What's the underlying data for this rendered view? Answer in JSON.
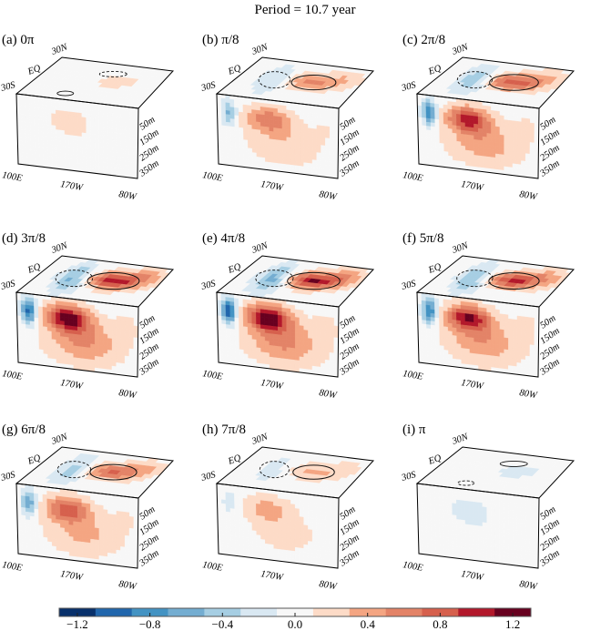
{
  "chart_data": {
    "type": "heatmap",
    "title": "Period = 10.7 year",
    "description_axes": {
      "lon_ticks": [
        "100E",
        "170W",
        "80W"
      ],
      "lat_ticks": [
        "30S",
        "EQ",
        "30N"
      ],
      "depth_ticks": [
        "50m",
        "150m",
        "250m",
        "350m"
      ]
    },
    "panels": [
      {
        "label": "(a)  0π",
        "phase": "0π",
        "amp": 0.15,
        "sign": 1
      },
      {
        "label": "(b) π/8",
        "phase": "π/8",
        "amp": 0.55,
        "sign": 1
      },
      {
        "label": "(c) 2π/8",
        "phase": "2π/8",
        "amp": 0.85,
        "sign": 1
      },
      {
        "label": "(d) 3π/8",
        "phase": "3π/8",
        "amp": 1.05,
        "sign": 1
      },
      {
        "label": "(e) 4π/8",
        "phase": "4π/8",
        "amp": 1.1,
        "sign": 1
      },
      {
        "label": "(f) 5π/8",
        "phase": "5π/8",
        "amp": 0.95,
        "sign": 1
      },
      {
        "label": "(g) 6π/8",
        "phase": "6π/8",
        "amp": 0.7,
        "sign": 1
      },
      {
        "label": "(h) 7π/8",
        "phase": "7π/8",
        "amp": 0.35,
        "sign": 1
      },
      {
        "label": "(i) π",
        "phase": "π",
        "amp": 0.15,
        "sign": -1
      }
    ],
    "colorbar": {
      "levels": [
        -1.3,
        -1.1,
        -0.9,
        -0.7,
        -0.5,
        -0.3,
        -0.1,
        0.1,
        0.3,
        0.5,
        0.7,
        0.9,
        1.1,
        1.3
      ],
      "colors": [
        "#08306b",
        "#2166ac",
        "#4393c3",
        "#74add1",
        "#a6cee3",
        "#d9e8f2",
        "#f7f7f7",
        "#fddbc7",
        "#f4a582",
        "#e38367",
        "#d6604d",
        "#b2182b",
        "#67001f"
      ],
      "tick_values": [
        -1.2,
        -0.8,
        -0.4,
        0.0,
        0.4,
        0.8,
        1.2
      ],
      "tick_labels": [
        "−1.2",
        "−0.8",
        "−0.4",
        "0.0",
        "0.4",
        "0.8",
        "1.2"
      ],
      "range": [
        -1.3,
        1.3
      ]
    }
  }
}
